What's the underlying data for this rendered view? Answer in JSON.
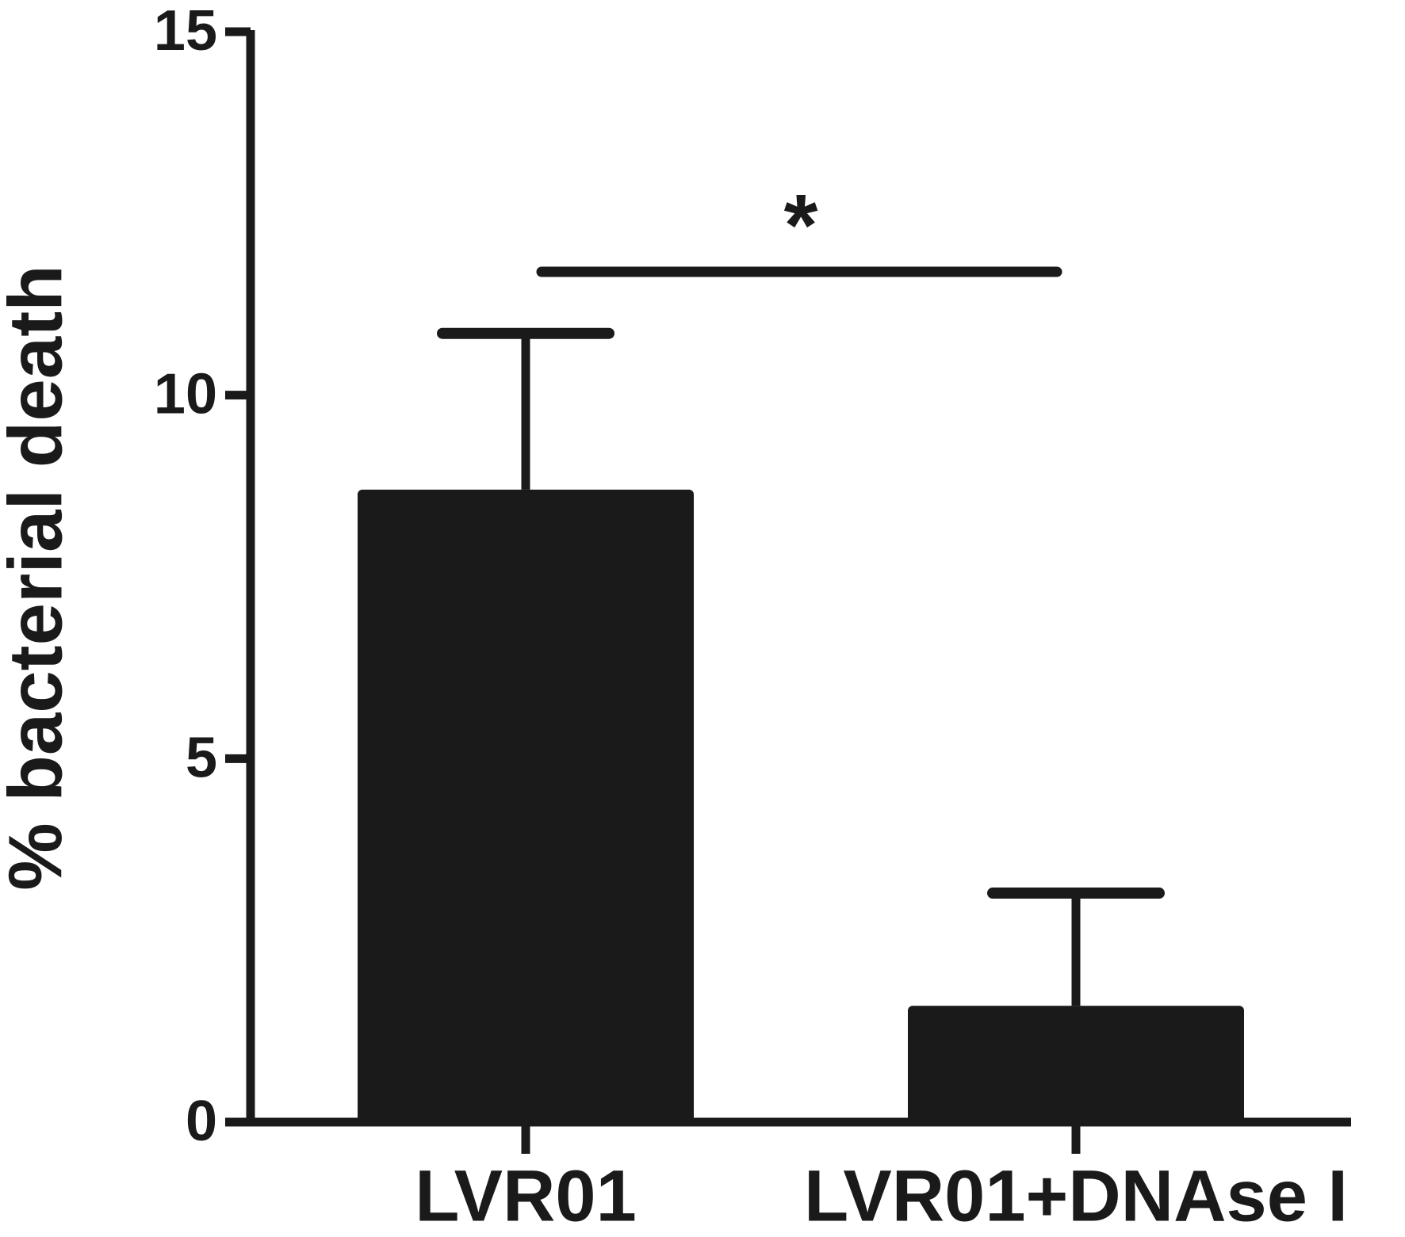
{
  "chart_data": {
    "type": "bar",
    "y_label": "% bacterial death",
    "categories": [
      "LVR01",
      "LVR01+DNAse I"
    ],
    "values": [
      8.7,
      1.6
    ],
    "errors": [
      2.15,
      1.55
    ],
    "color": "#1a1a1a",
    "ylim": [
      0,
      15
    ],
    "yticks": [
      0,
      5,
      10,
      15
    ],
    "grid": false,
    "annotations": [
      "*"
    ]
  }
}
